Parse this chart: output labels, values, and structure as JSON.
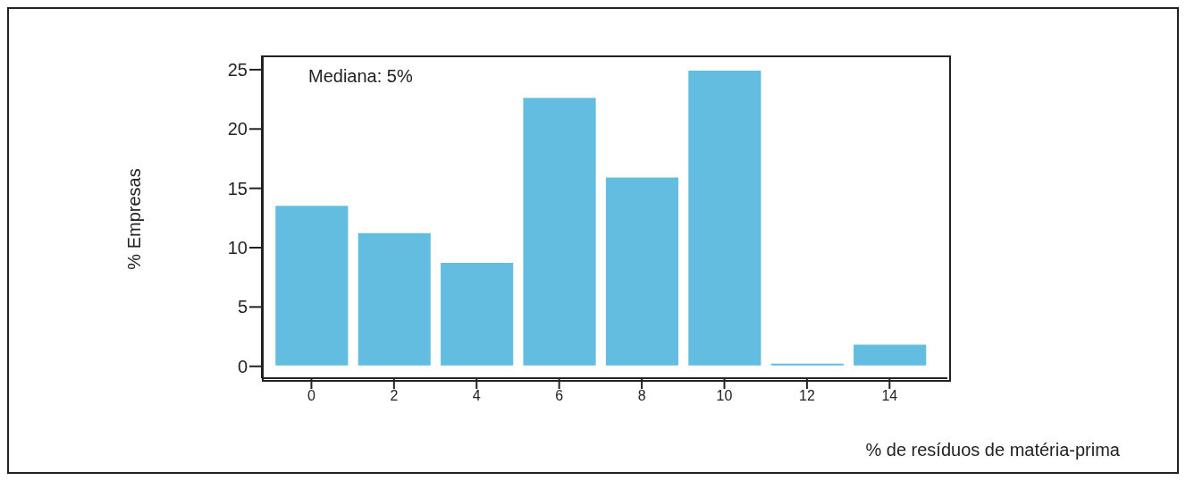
{
  "chart_data": {
    "type": "histogram",
    "xlabel": "% de resíduos de matéria-prima",
    "ylabel": "% Empresas",
    "annotations": [
      "Mediana: 5%"
    ],
    "bins": [
      -1,
      1,
      3,
      5,
      7,
      9,
      11,
      13,
      15
    ],
    "values": [
      13.6,
      11.3,
      8.8,
      22.7,
      16.0,
      25.0,
      0.3,
      1.9
    ],
    "color": "#62bde0",
    "xlim": [
      -1.2,
      15.4
    ],
    "xticks": [
      0,
      2,
      4,
      6,
      8,
      10,
      12,
      14
    ],
    "ylim": [
      -1,
      26.2
    ],
    "yticks": [
      0,
      5,
      10,
      15,
      20,
      25
    ],
    "grid": false,
    "legend": false
  }
}
